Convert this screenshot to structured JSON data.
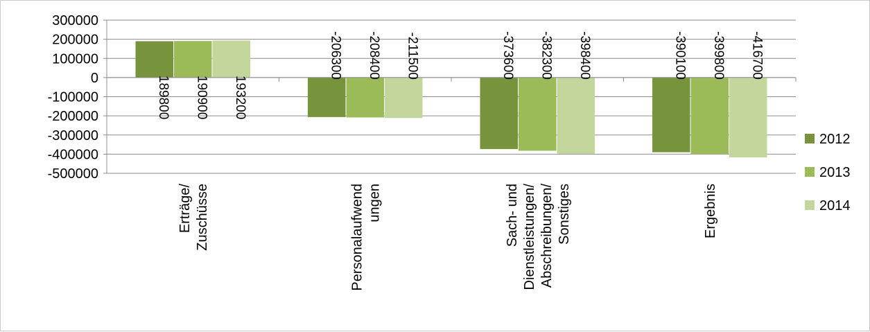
{
  "chart_data": {
    "type": "bar",
    "categories": [
      [
        "Erträge/",
        "Zuschüsse"
      ],
      [
        "Personalaufwend",
        "ungen"
      ],
      [
        "Sach- und",
        "Dienstleistungen/",
        "Abschreibungen/",
        "Sonstiges"
      ],
      [
        "Ergebnis"
      ]
    ],
    "series": [
      {
        "name": "2012",
        "color": "#77933c",
        "values": [
          189800,
          -206300,
          -373600,
          -390100
        ]
      },
      {
        "name": "2013",
        "color": "#9bbb59",
        "values": [
          190900,
          -208400,
          -382300,
          -399800
        ]
      },
      {
        "name": "2014",
        "color": "#c3d69b",
        "values": [
          193200,
          -211500,
          -398400,
          -416700
        ]
      }
    ],
    "ylim": [
      -500000,
      300000
    ],
    "yticks": [
      "300000",
      "200000",
      "100000",
      "0",
      "-100000",
      "-200000",
      "-300000",
      "-400000",
      "-500000"
    ],
    "grid": true,
    "legend": "right",
    "gridline_color": "#8c8c8c"
  }
}
